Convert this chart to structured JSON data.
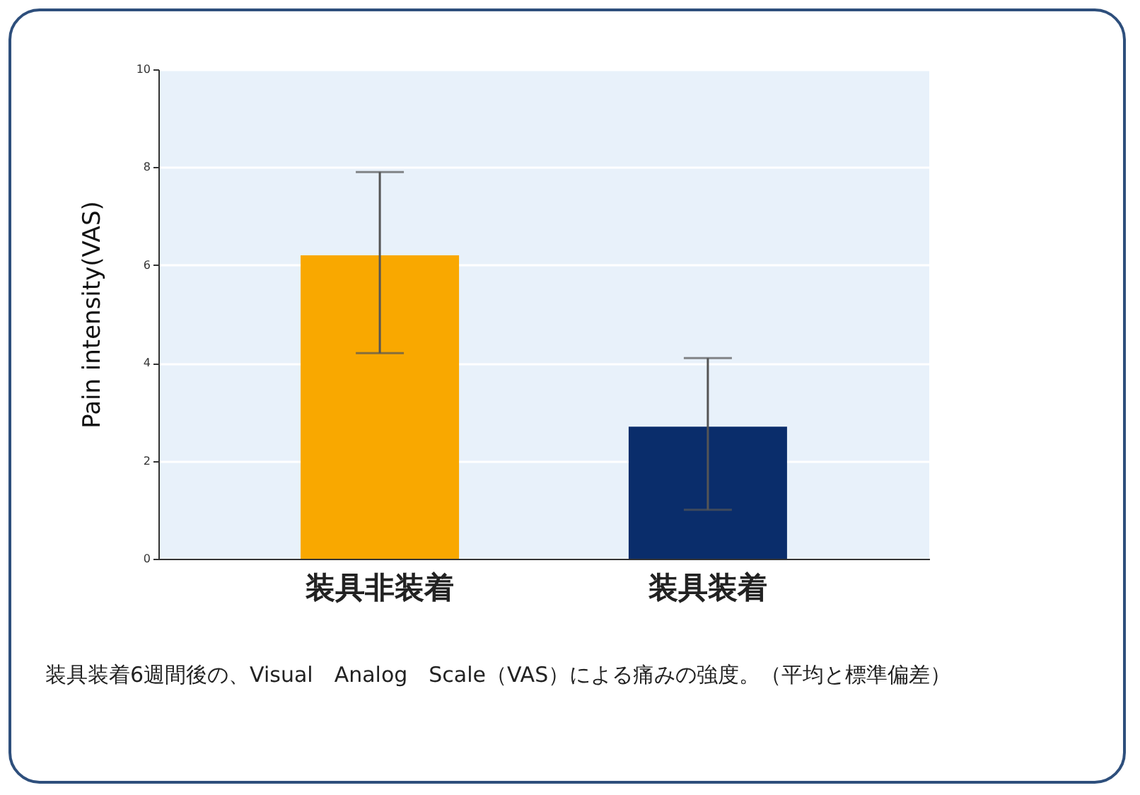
{
  "chart_data": {
    "type": "bar",
    "ylabel": "Pain intensity(VAS)",
    "categories": [
      "装具非装着",
      "装具装着"
    ],
    "values": [
      6.2,
      2.7
    ],
    "colors": [
      "#f9a800",
      "#0a2d6b"
    ],
    "errors": [
      [
        4.2,
        7.9
      ],
      [
        1.0,
        4.1
      ]
    ],
    "ylim": [
      0,
      10
    ],
    "yticks": [
      0,
      2,
      4,
      6,
      8,
      10
    ],
    "grid": "y",
    "annotations": [
      "装具装着6週間後の、Visual　Analog　Scale（VAS）による痛みの強度。（平均と標準偏差）"
    ]
  }
}
